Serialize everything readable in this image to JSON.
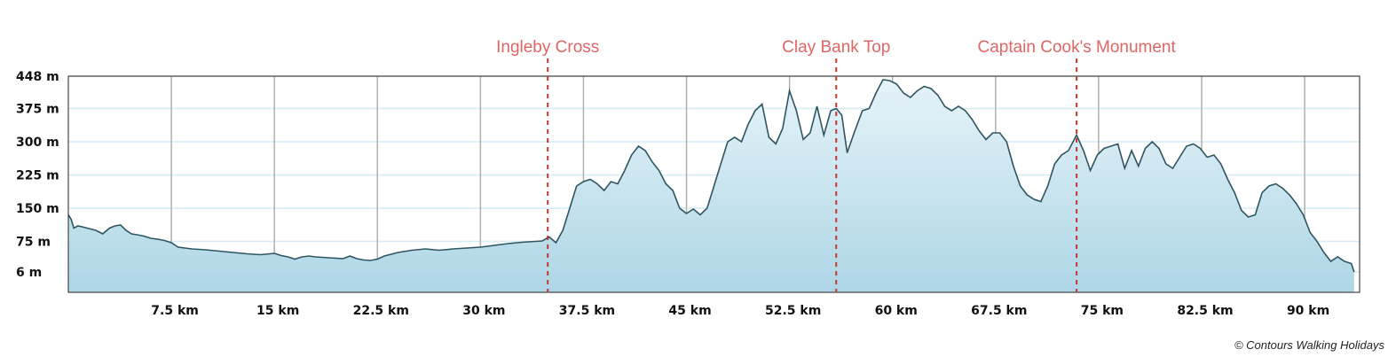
{
  "chart_data": {
    "type": "area",
    "title": "",
    "xlabel": "",
    "ylabel": "",
    "x_unit": "km",
    "y_unit": "m",
    "xlim": [
      0,
      94
    ],
    "ylim": [
      -40,
      448
    ],
    "grid": "vertical lines at x ticks, horizontal lines at y ticks",
    "colors": {
      "fill_top": "#e6f3f9",
      "fill_bottom": "#aed6e6",
      "line": "#2f5561",
      "vertical_grid": "#b0b0b0",
      "horizontal_grid": "#d6ecf6",
      "marker": "#c0392b",
      "marker_label": "#e06666"
    },
    "y_ticks": [
      {
        "value": 448,
        "label": "448 m"
      },
      {
        "value": 375,
        "label": "375 m"
      },
      {
        "value": 300,
        "label": "300 m"
      },
      {
        "value": 225,
        "label": "225 m"
      },
      {
        "value": 150,
        "label": "150 m"
      },
      {
        "value": 75,
        "label": "75 m"
      },
      {
        "value": 6,
        "label": "6 m"
      }
    ],
    "x_ticks": [
      {
        "value": 7.5,
        "label": "7.5 km"
      },
      {
        "value": 15,
        "label": "15 km"
      },
      {
        "value": 22.5,
        "label": "22.5 km"
      },
      {
        "value": 30,
        "label": "30 km"
      },
      {
        "value": 37.5,
        "label": "37.5 km"
      },
      {
        "value": 45,
        "label": "45 km"
      },
      {
        "value": 52.5,
        "label": "52.5 km"
      },
      {
        "value": 60,
        "label": "60 km"
      },
      {
        "value": 67.5,
        "label": "67.5 km"
      },
      {
        "value": 75,
        "label": "75 km"
      },
      {
        "value": 82.5,
        "label": "82.5 km"
      },
      {
        "value": 90,
        "label": "90 km"
      }
    ],
    "waypoints": [
      {
        "name": "Ingleby Cross",
        "x": 34.9
      },
      {
        "name": "Clay Bank Top",
        "x": 55.9
      },
      {
        "name": "Captain Cook's Monument",
        "x": 73.4
      }
    ],
    "series": [
      {
        "x": [
          0,
          0.2,
          0.4,
          0.7,
          1,
          1.5,
          2,
          2.5,
          3,
          3.4,
          3.8,
          4.2,
          4.6,
          5,
          5.5,
          6,
          6.5,
          7,
          7.5,
          8,
          9,
          10,
          11,
          12,
          13,
          14,
          15,
          15.5,
          16,
          16.5,
          17,
          17.5,
          18,
          19,
          20,
          20.5,
          21,
          21.5,
          22,
          22.5,
          23,
          24,
          25,
          26,
          27,
          28,
          29,
          30,
          31,
          32,
          33,
          34,
          34.5,
          35,
          35.5,
          36,
          36.5,
          37,
          37.5,
          38,
          38.5,
          39,
          39.5,
          40,
          40.5,
          41,
          41.5,
          42,
          42.5,
          43,
          43.5,
          44,
          44.5,
          45,
          45.5,
          46,
          46.5,
          47,
          47.5,
          48,
          48.5,
          49,
          49.5,
          50,
          50.5,
          51,
          51.5,
          52,
          52.5,
          53,
          53.5,
          54,
          54.5,
          55,
          55.5,
          55.9,
          56.3,
          56.7,
          57.2,
          57.8,
          58.3,
          58.8,
          59.3,
          59.8,
          60.3,
          60.8,
          61.3,
          61.8,
          62.3,
          62.8,
          63.3,
          63.8,
          64.3,
          64.8,
          65.3,
          65.8,
          66.3,
          66.8,
          67.3,
          67.8,
          68.3,
          68.8,
          69.3,
          69.8,
          70.3,
          70.8,
          71.3,
          71.8,
          72.3,
          72.8,
          73.4,
          73.9,
          74.4,
          74.9,
          75.4,
          75.9,
          76.4,
          76.9,
          77.4,
          77.9,
          78.4,
          78.9,
          79.4,
          79.9,
          80.4,
          80.9,
          81.4,
          81.9,
          82.4,
          82.9,
          83.4,
          83.9,
          84.4,
          84.9,
          85.4,
          85.9,
          86.4,
          86.9,
          87.4,
          87.9,
          88.4,
          88.9,
          89.4,
          89.9,
          90.4,
          90.9,
          91.4,
          91.9,
          92.4,
          92.9,
          93.4,
          93.6
        ],
        "y": [
          135,
          125,
          105,
          110,
          108,
          104,
          100,
          92,
          105,
          110,
          112,
          100,
          92,
          90,
          87,
          82,
          80,
          77,
          72,
          62,
          58,
          56,
          53,
          50,
          47,
          45,
          48,
          43,
          40,
          35,
          40,
          42,
          40,
          38,
          36,
          42,
          36,
          33,
          32,
          35,
          42,
          50,
          55,
          58,
          55,
          58,
          60,
          62,
          66,
          70,
          73,
          75,
          76,
          85,
          72,
          100,
          150,
          200,
          210,
          215,
          205,
          190,
          210,
          205,
          235,
          270,
          290,
          280,
          255,
          235,
          205,
          190,
          150,
          138,
          148,
          135,
          150,
          200,
          250,
          300,
          310,
          300,
          340,
          370,
          385,
          310,
          295,
          330,
          415,
          370,
          305,
          320,
          380,
          315,
          370,
          375,
          360,
          275,
          320,
          370,
          375,
          410,
          440,
          438,
          430,
          410,
          400,
          415,
          425,
          420,
          405,
          380,
          370,
          380,
          370,
          350,
          325,
          305,
          320,
          320,
          300,
          245,
          200,
          180,
          170,
          165,
          200,
          250,
          270,
          280,
          315,
          280,
          235,
          270,
          285,
          290,
          295,
          240,
          280,
          245,
          285,
          300,
          285,
          250,
          240,
          265,
          290,
          295,
          285,
          265,
          270,
          250,
          215,
          185,
          145,
          130,
          135,
          185,
          200,
          205,
          195,
          180,
          160,
          135,
          95,
          75,
          50,
          30,
          40,
          30,
          25,
          6
        ]
      }
    ]
  },
  "credit": "© Contours Walking Holidays"
}
